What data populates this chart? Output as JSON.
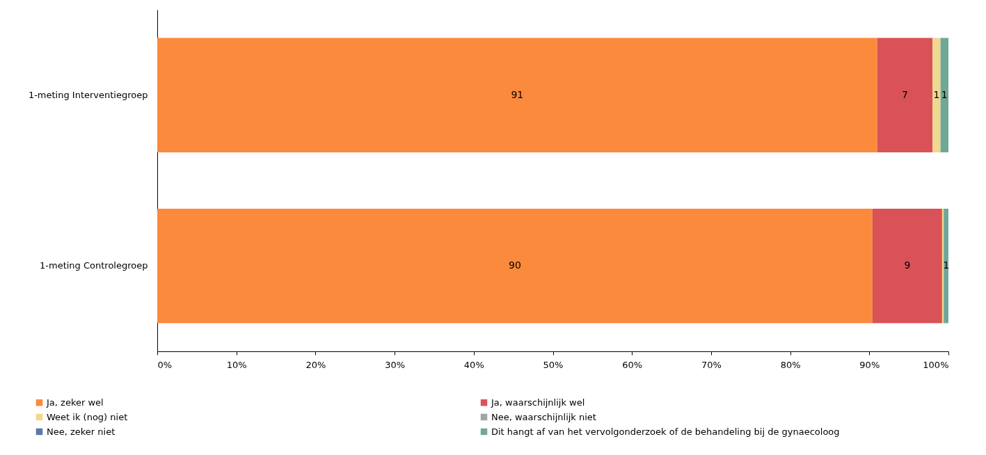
{
  "chart_data": {
    "type": "bar",
    "orientation": "horizontal",
    "stacked": true,
    "categories": [
      "1-meting Interventiegroep",
      "1-meting Controlegroep"
    ],
    "series": [
      {
        "name": "Ja, zeker wel",
        "color": "#fc8a3c",
        "values": [
          91,
          90.4
        ],
        "value_labels": [
          "91",
          "90"
        ]
      },
      {
        "name": "Ja, waarschijnlijk wel",
        "color": "#d85258",
        "values": [
          7,
          8.8
        ],
        "value_labels": [
          "7",
          "9"
        ]
      },
      {
        "name": "Weet ik (nog) niet",
        "color": "#f0d88e",
        "values": [
          1,
          0.2
        ],
        "value_labels": [
          "1",
          null
        ]
      },
      {
        "name": "Nee, waarschijnlijk niet",
        "color": "#a0a4a8",
        "values": [
          0,
          0
        ],
        "value_labels": [
          null,
          null
        ]
      },
      {
        "name": "Nee, zeker niet",
        "color": "#5a78a6",
        "values": [
          0,
          0
        ],
        "value_labels": [
          null,
          null
        ]
      },
      {
        "name": "Dit hangt af van het vervolgonderzoek of de behandeling bij de gynaecoloog",
        "color": "#70a898",
        "values": [
          1,
          0.6
        ],
        "value_labels": [
          "1",
          "1"
        ]
      }
    ],
    "xlim": [
      0,
      100
    ],
    "xticks": [
      {
        "value": 0,
        "label": "0%"
      },
      {
        "value": 10,
        "label": "10%"
      },
      {
        "value": 20,
        "label": "20%"
      },
      {
        "value": 30,
        "label": "30%"
      },
      {
        "value": 40,
        "label": "40%"
      },
      {
        "value": 50,
        "label": "50%"
      },
      {
        "value": 60,
        "label": "60%"
      },
      {
        "value": 70,
        "label": "70%"
      },
      {
        "value": 80,
        "label": "80%"
      },
      {
        "value": 90,
        "label": "90%"
      },
      {
        "value": 100,
        "label": "100%"
      }
    ],
    "grid": false,
    "legend": "bottom"
  }
}
